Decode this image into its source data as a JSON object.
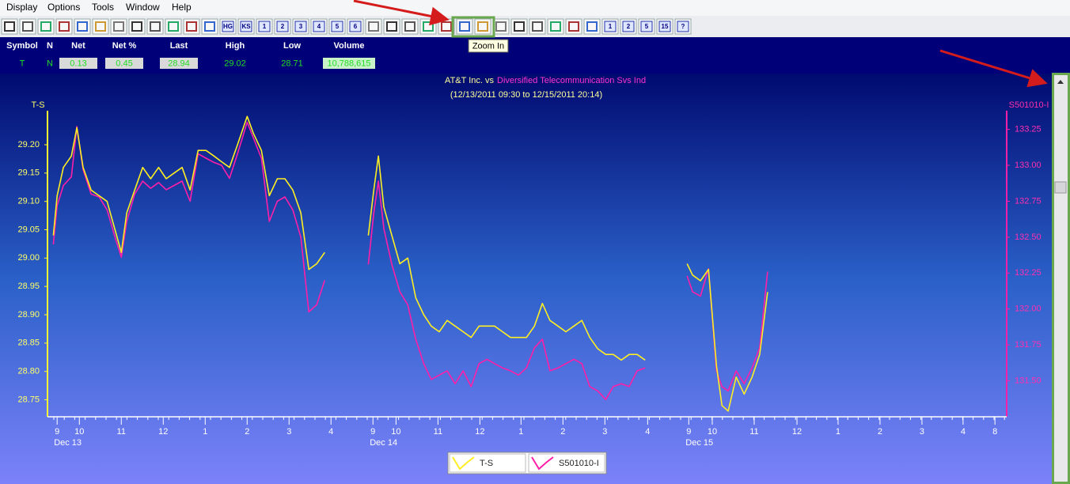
{
  "menu": [
    "Display",
    "Options",
    "Tools",
    "Window",
    "Help"
  ],
  "toolbar": {
    "labels": [
      "HG",
      "KS",
      "1",
      "2",
      "3",
      "4",
      "5",
      "6",
      "1",
      "2",
      "5",
      "15",
      "?"
    ]
  },
  "tooltip": "Zoom In",
  "quote": {
    "headers": [
      "Symbol",
      "N",
      "Net",
      "Net %",
      "Last",
      "High",
      "Low",
      "Volume"
    ],
    "values": [
      "T",
      "N",
      "0.13",
      "0.45",
      "28.94",
      "29.02",
      "28.71",
      "10,788,615"
    ]
  },
  "chart_data": {
    "type": "line",
    "title": "AT&T Inc. vs",
    "title_series": "Diversified Telecommunication Svs Ind",
    "subtitle": "(12/13/2011 09:30 to 12/15/2011 20:14)",
    "y_label": "T-S",
    "y2_label": "S501010-I",
    "xlim": [
      -0.23,
      22.64
    ],
    "xticks": [
      {
        "value": 0,
        "label": "9"
      },
      {
        "value": 0.53,
        "label": "10"
      },
      {
        "value": 1.53,
        "label": "11"
      },
      {
        "value": 2.53,
        "label": "12"
      },
      {
        "value": 3.53,
        "label": "1"
      },
      {
        "value": 4.53,
        "label": "2"
      },
      {
        "value": 5.53,
        "label": "3"
      },
      {
        "value": 6.53,
        "label": "4"
      },
      {
        "value": 7.53,
        "label": "9"
      },
      {
        "value": 8.08,
        "label": "10"
      },
      {
        "value": 9.08,
        "label": "11"
      },
      {
        "value": 10.08,
        "label": "12"
      },
      {
        "value": 11.06,
        "label": "1"
      },
      {
        "value": 12.06,
        "label": "2"
      },
      {
        "value": 13.06,
        "label": "3"
      },
      {
        "value": 14.08,
        "label": "4"
      },
      {
        "value": 15.06,
        "label": "9"
      },
      {
        "value": 15.62,
        "label": "10"
      },
      {
        "value": 16.62,
        "label": "11"
      },
      {
        "value": 17.64,
        "label": "12"
      },
      {
        "value": 18.62,
        "label": "1"
      },
      {
        "value": 19.62,
        "label": "2"
      },
      {
        "value": 20.62,
        "label": "3"
      },
      {
        "value": 21.6,
        "label": "4"
      },
      {
        "value": 22.36,
        "label": "8"
      }
    ],
    "day_labels": [
      {
        "text": "Dec 13",
        "x": 0
      },
      {
        "text": "Dec 14",
        "x": 7.53
      },
      {
        "text": "Dec 15",
        "x": 15.06
      }
    ],
    "ylim": [
      28.72,
      29.26
    ],
    "yticks": [
      28.75,
      {
        "value": 28.8,
        "label": "28.80"
      },
      28.85,
      {
        "value": 28.9,
        "label": "28.90"
      },
      28.95,
      {
        "value": 29,
        "label": "29.00"
      },
      29.05,
      {
        "value": 29.1,
        "label": "29.10"
      },
      29.15,
      {
        "value": 29.2,
        "label": "29.20"
      }
    ],
    "y2lim": [
      131.25,
      133.38
    ],
    "y2ticks": [
      {
        "value": 131.5,
        "label": "131.50"
      },
      131.75,
      {
        "value": 132,
        "label": "132.00"
      },
      132.25,
      {
        "value": 132.5,
        "label": "132.50"
      },
      132.75,
      {
        "value": 133,
        "label": "133.00"
      },
      133.25
    ],
    "x": [
      -0.09,
      0,
      0.15,
      0.34,
      0.47,
      0.62,
      0.81,
      1,
      1.19,
      1.38,
      1.53,
      1.66,
      1.85,
      2.04,
      2.23,
      2.42,
      2.6,
      2.79,
      2.98,
      3.17,
      3.36,
      3.55,
      3.74,
      3.92,
      4.11,
      4.3,
      4.53,
      4.68,
      4.87,
      5.06,
      5.25,
      5.43,
      5.62,
      5.81,
      6,
      6.19,
      6.38,
      null,
      7.42,
      7.55,
      7.66,
      7.79,
      7.98,
      8.17,
      8.36,
      8.55,
      8.74,
      8.92,
      9.11,
      9.3,
      9.49,
      9.68,
      9.87,
      10.06,
      10.25,
      10.43,
      10.62,
      10.81,
      11,
      11.19,
      11.38,
      11.57,
      11.75,
      11.94,
      12.13,
      12.32,
      12.51,
      12.7,
      12.89,
      13.08,
      13.26,
      13.45,
      13.64,
      13.83,
      14.02,
      null,
      15.02,
      15.15,
      15.34,
      15.53,
      15.72,
      15.85,
      16,
      16.19,
      16.38,
      16.57,
      16.75,
      16.94
    ],
    "series": [
      {
        "name": "T-S",
        "color": "#ffee22",
        "axis": "y",
        "values": [
          29.04,
          29.11,
          29.16,
          29.18,
          29.23,
          29.16,
          29.12,
          29.11,
          29.1,
          29.05,
          29.01,
          29.08,
          29.12,
          29.16,
          29.14,
          29.16,
          29.14,
          29.15,
          29.16,
          29.12,
          29.19,
          29.19,
          29.18,
          29.17,
          29.16,
          29.2,
          29.25,
          29.22,
          29.19,
          29.11,
          29.14,
          29.14,
          29.12,
          29.08,
          28.98,
          28.99,
          29.01,
          null,
          29.04,
          29.12,
          29.18,
          29.09,
          29.04,
          28.99,
          29.0,
          28.93,
          28.9,
          28.88,
          28.87,
          28.89,
          28.88,
          28.87,
          28.86,
          28.88,
          28.88,
          28.88,
          28.87,
          28.86,
          28.86,
          28.86,
          28.88,
          28.92,
          28.89,
          28.88,
          28.87,
          28.88,
          28.89,
          28.86,
          28.84,
          28.83,
          28.83,
          28.82,
          28.83,
          28.83,
          28.82,
          null,
          28.99,
          28.97,
          28.96,
          28.98,
          28.81,
          28.74,
          28.73,
          28.79,
          28.76,
          28.79,
          28.83,
          28.94
        ]
      },
      {
        "name": "S501010-I",
        "color": "#ff1fa8",
        "axis": "y2",
        "values": [
          132.45,
          132.72,
          132.86,
          132.92,
          133.27,
          132.97,
          132.8,
          132.78,
          132.69,
          132.5,
          132.36,
          132.61,
          132.8,
          132.89,
          132.84,
          132.88,
          132.83,
          132.86,
          132.89,
          132.75,
          133.08,
          133.05,
          133.02,
          133.0,
          132.91,
          133.08,
          133.3,
          133.19,
          133.05,
          132.61,
          132.75,
          132.78,
          132.69,
          132.5,
          131.98,
          132.03,
          132.2,
          null,
          132.31,
          132.67,
          132.89,
          132.56,
          132.31,
          132.12,
          132.03,
          131.79,
          131.62,
          131.51,
          131.54,
          131.57,
          131.48,
          131.57,
          131.46,
          131.62,
          131.65,
          131.62,
          131.59,
          131.57,
          131.54,
          131.59,
          131.73,
          131.79,
          131.57,
          131.59,
          131.62,
          131.65,
          131.62,
          131.46,
          131.43,
          131.37,
          131.46,
          131.48,
          131.46,
          131.57,
          131.59,
          null,
          132.23,
          132.12,
          132.09,
          132.28,
          131.57,
          131.46,
          131.43,
          131.57,
          131.48,
          131.59,
          131.73,
          132.26
        ]
      }
    ]
  }
}
